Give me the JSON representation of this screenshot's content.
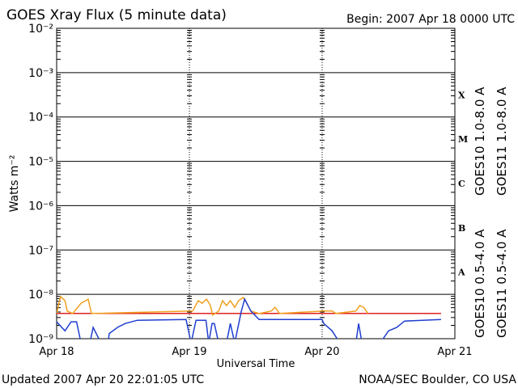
{
  "chart_data": {
    "type": "line",
    "title": "GOES Xray Flux (5 minute data)",
    "subtitle": "Begin:  2007 Apr 18 0000 UTC",
    "x_label": "Universal Time",
    "y_label": "Watts m⁻²",
    "footer_left": "Updated 2007 Apr 20 22:01:05 UTC",
    "footer_right": "NOAA/SEC Boulder, CO USA",
    "log_y": true,
    "grid": true,
    "xlim": [
      0,
      72
    ],
    "xticks": [
      {
        "value": 0,
        "label": "Apr 18"
      },
      {
        "value": 24,
        "label": "Apr 19"
      },
      {
        "value": 48,
        "label": "Apr 20"
      },
      {
        "value": 72,
        "label": "Apr 21"
      }
    ],
    "ylim": [
      1e-09,
      0.01
    ],
    "yticks": [
      {
        "value": 1e-09,
        "label": "10⁻⁹"
      },
      {
        "value": 1e-08,
        "label": "10⁻⁸"
      },
      {
        "value": 1e-07,
        "label": "10⁻⁷"
      },
      {
        "value": 1e-06,
        "label": "10⁻⁶"
      },
      {
        "value": 1e-05,
        "label": "10⁻⁵"
      },
      {
        "value": 0.0001,
        "label": "10⁻⁴"
      },
      {
        "value": 0.001,
        "label": "10⁻³"
      },
      {
        "value": 0.01,
        "label": "10⁻²"
      }
    ],
    "flare_classes": [
      "A",
      "B",
      "C",
      "M",
      "X"
    ],
    "series": [
      {
        "name": "GOES10 1.0-8.0 A",
        "color": "#7b2fbe",
        "x": [
          0,
          69.5
        ],
        "values": [
          null,
          null
        ]
      },
      {
        "name": "GOES11 1.0-8.0 A",
        "color": "#e02020",
        "x": [
          0,
          69.5
        ],
        "values": [
          3.7e-09,
          3.7e-09
        ]
      },
      {
        "name": "GOES10 0.5-4.0 A",
        "color": "#f0a020",
        "x": [
          0,
          0.4,
          0.7,
          1.5,
          1.9,
          2.9,
          4.4,
          5.7,
          6.3,
          24.6,
          25.6,
          26.3,
          27.1,
          27.8,
          28.2,
          29.3,
          30,
          30.7,
          31.4,
          32.2,
          32.9,
          33.7,
          34.4,
          35.1,
          36.6,
          38.8,
          39.5,
          40.3,
          48.3,
          49.8,
          50.5,
          54.1,
          54.8,
          55.5,
          56.3
        ],
        "values": [
          3.7e-09,
          6.3e-09,
          8.9e-09,
          7.2e-09,
          4.2e-09,
          3.7e-09,
          6.3e-09,
          7.8e-09,
          3.7e-09,
          4.2e-09,
          7.2e-09,
          6.3e-09,
          7.8e-09,
          5.6e-09,
          3.4e-09,
          4.2e-09,
          7.2e-09,
          5.6e-09,
          7.2e-09,
          5.1e-09,
          7.2e-09,
          8.5e-09,
          6.3e-09,
          4.2e-09,
          3.7e-09,
          4.2e-09,
          5.1e-09,
          3.7e-09,
          4.2e-09,
          4.2e-09,
          3.7e-09,
          4.2e-09,
          5.6e-09,
          5.1e-09,
          3.7e-09
        ]
      },
      {
        "name": "GOES11 0.5-4.0 A",
        "color": "#1f3fd0",
        "x": [
          0,
          1.5,
          2.6,
          3.6,
          4.4,
          6.0,
          6.6,
          8.0,
          9.3,
          9.5,
          11,
          12.4,
          14.6,
          23.4,
          24.3,
          25.2,
          27,
          27.5,
          28.1,
          28.5,
          29.3,
          30.7,
          31.4,
          32.2,
          33.4,
          34,
          35.1,
          36.6,
          48,
          48.3,
          49.8,
          51.2,
          54.1,
          54.6,
          55.2,
          58.5,
          60,
          61.5,
          62.9,
          69.5
        ],
        "values": [
          2.4e-09,
          1.5e-09,
          2.4e-09,
          2.4e-09,
          8e-10,
          8e-10,
          1.8e-09,
          8e-10,
          8e-10,
          1.3e-09,
          1.8e-09,
          2.2e-09,
          2.6e-09,
          2.7e-09,
          8e-10,
          2.6e-09,
          2.6e-09,
          8e-10,
          2.2e-09,
          2.2e-09,
          8e-10,
          8e-10,
          2.2e-09,
          8e-10,
          4.2e-09,
          7.8e-09,
          4.2e-09,
          2.7e-09,
          2.7e-09,
          2.2e-09,
          1.5e-09,
          8e-10,
          8e-10,
          2.2e-09,
          8e-10,
          8e-10,
          1.5e-09,
          1.8e-09,
          2.5e-09,
          2.7e-09
        ]
      }
    ]
  }
}
